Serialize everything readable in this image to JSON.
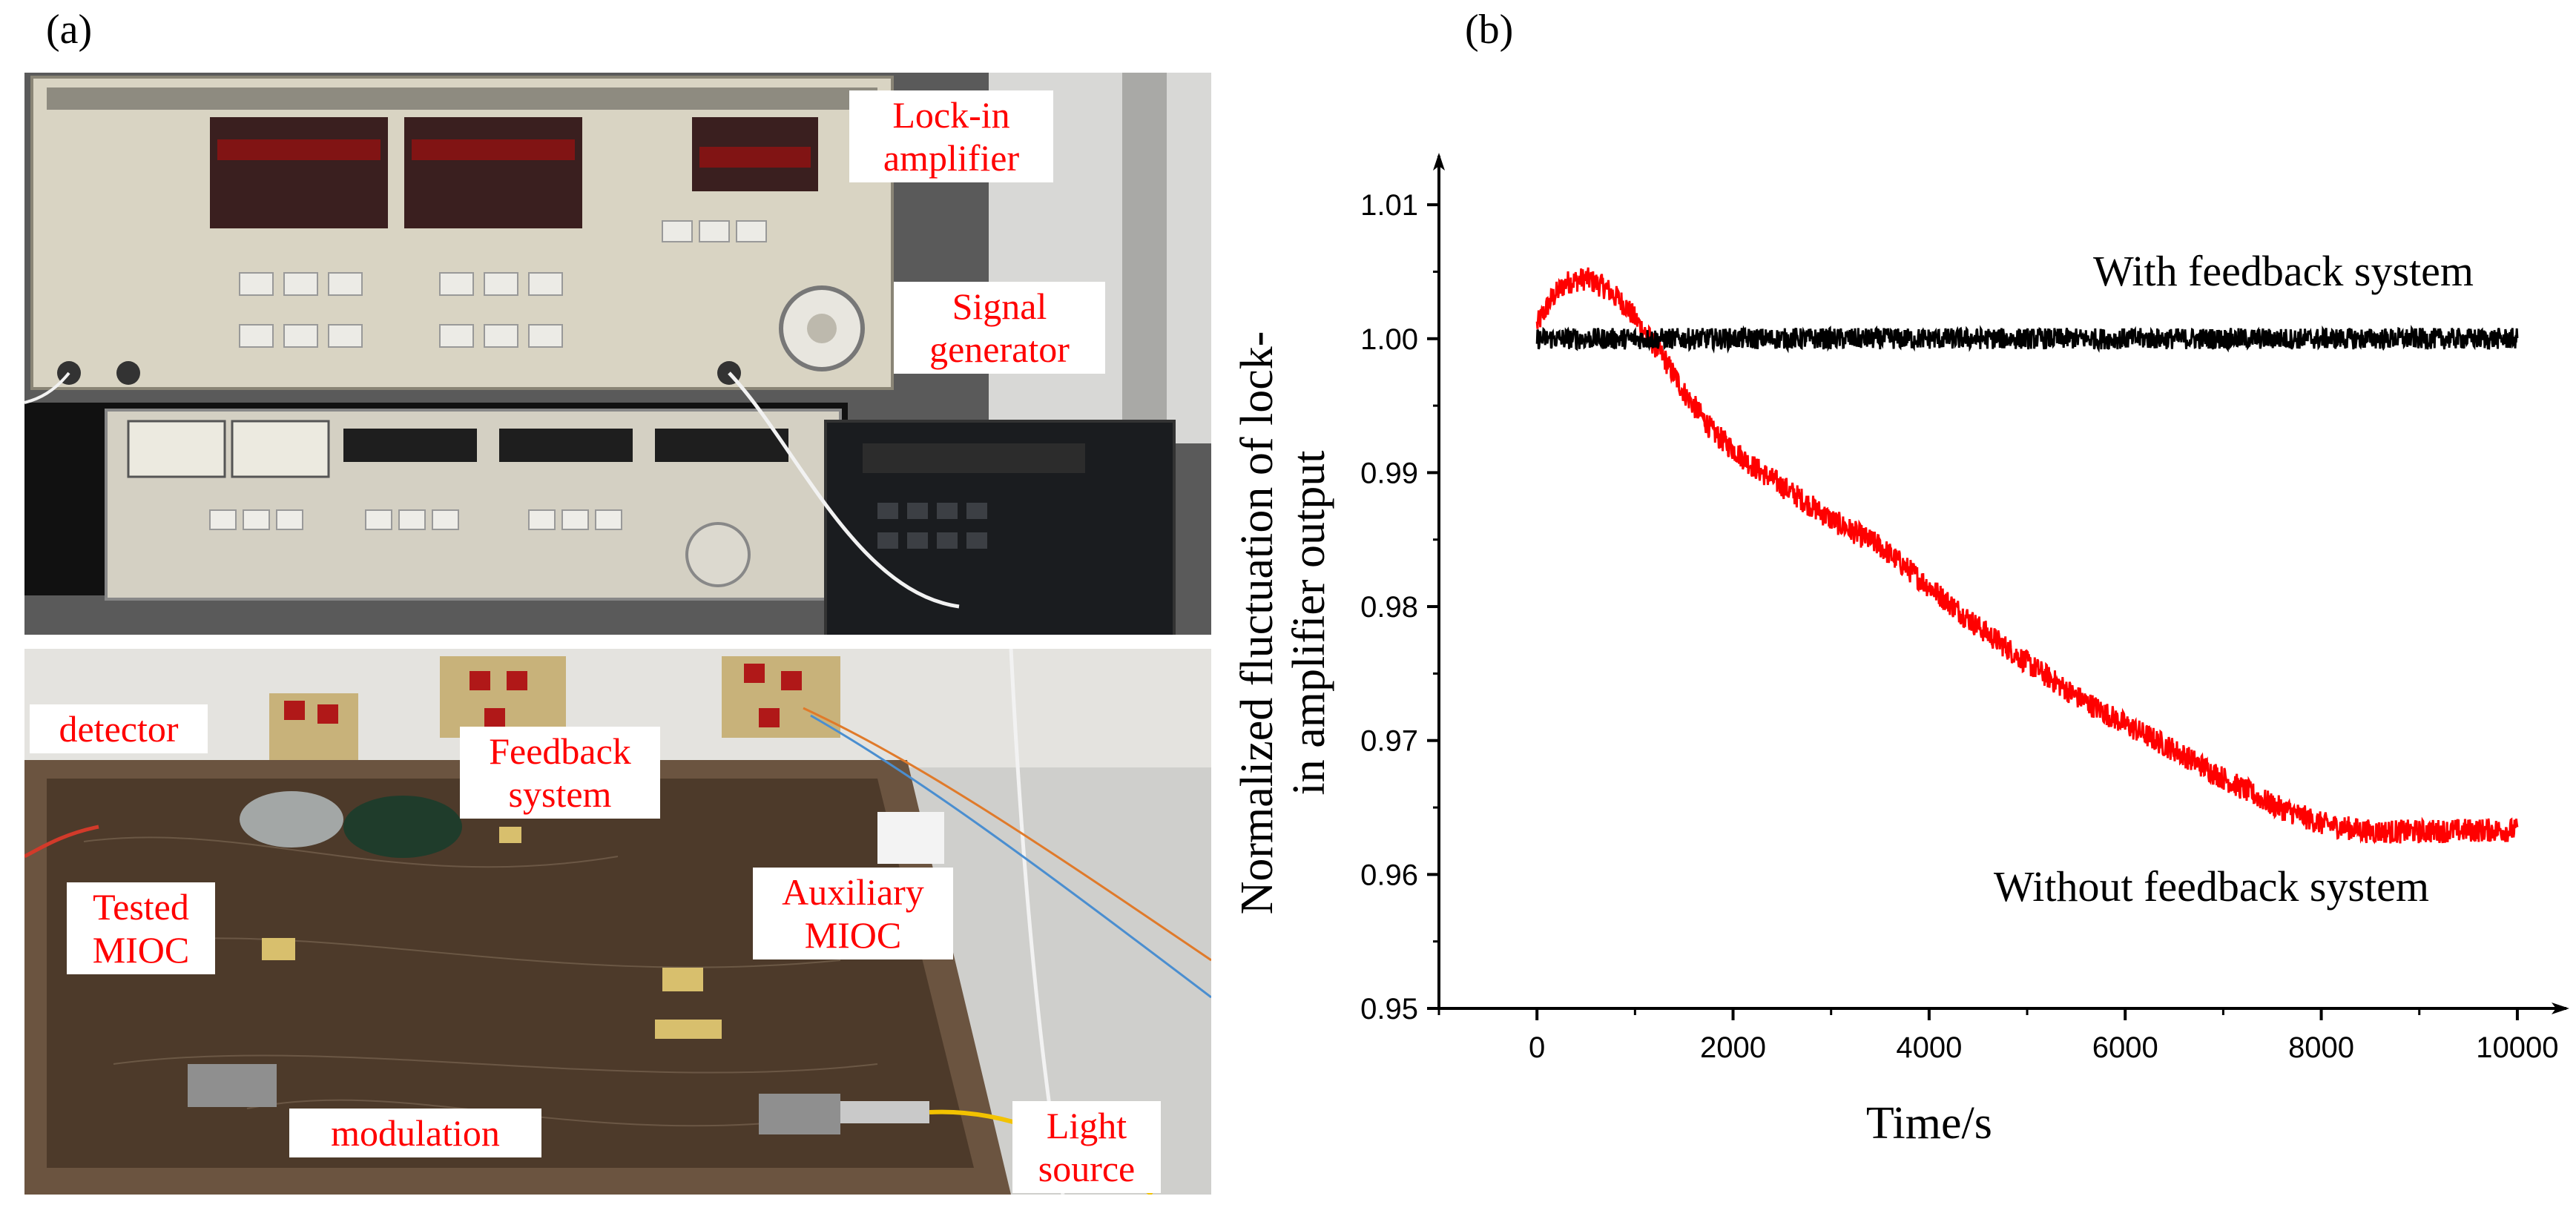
{
  "figure": {
    "panel_a_label": "(a)",
    "panel_b_label": "(b)"
  },
  "photo_callouts": {
    "lockin": [
      "Lock-in",
      "amplifier"
    ],
    "signal": [
      "Signal",
      "generator"
    ],
    "detector": [
      "detector"
    ],
    "feedback": [
      "Feedback",
      "system"
    ],
    "tested": [
      "Tested",
      "MIOC"
    ],
    "auxiliary": [
      "Auxiliary",
      "MIOC"
    ],
    "modulation": [
      "modulation"
    ],
    "light": [
      "Light",
      "source"
    ]
  },
  "colors": {
    "with_feedback": "#000000",
    "without_feedback": "#ff0000",
    "callout_text": "#ff0000"
  },
  "chart_data": {
    "type": "line",
    "xlabel": "Time/s",
    "ylabel_lines": [
      "Normalized fluctuation of lock-",
      "in amplifier output"
    ],
    "xlim": [
      -1000,
      10500
    ],
    "ylim": [
      0.95,
      1.012
    ],
    "xticks": [
      0,
      2000,
      4000,
      6000,
      8000,
      10000
    ],
    "yticks": [
      0.95,
      0.96,
      0.97,
      0.98,
      0.99,
      1.0,
      1.01
    ],
    "ytick_labels": [
      "0.95",
      "0.96",
      "0.97",
      "0.98",
      "0.99",
      "1.00",
      "1.01"
    ],
    "grid": false,
    "series": [
      {
        "name": "With feedback system",
        "x": [
          0,
          10000
        ],
        "y": [
          1.0,
          1.0
        ],
        "noise": 0.0008
      },
      {
        "name": "Without feedback system",
        "x": [
          0,
          150,
          300,
          500,
          700,
          900,
          1100,
          1300,
          1500,
          1800,
          2200,
          2600,
          3000,
          3500,
          4000,
          4500,
          5000,
          5500,
          6000,
          6500,
          7000,
          7500,
          8000,
          8500,
          9000,
          9500,
          10000
        ],
        "y": [
          1.001,
          1.003,
          1.0042,
          1.0045,
          1.0038,
          1.0025,
          1.0005,
          0.9985,
          0.996,
          0.993,
          0.9905,
          0.9885,
          0.9865,
          0.9845,
          0.9815,
          0.9785,
          0.9758,
          0.9733,
          0.9712,
          0.9693,
          0.9672,
          0.9652,
          0.9638,
          0.9632,
          0.9632,
          0.9633,
          0.9633
        ],
        "noise": 0.0009
      }
    ]
  }
}
